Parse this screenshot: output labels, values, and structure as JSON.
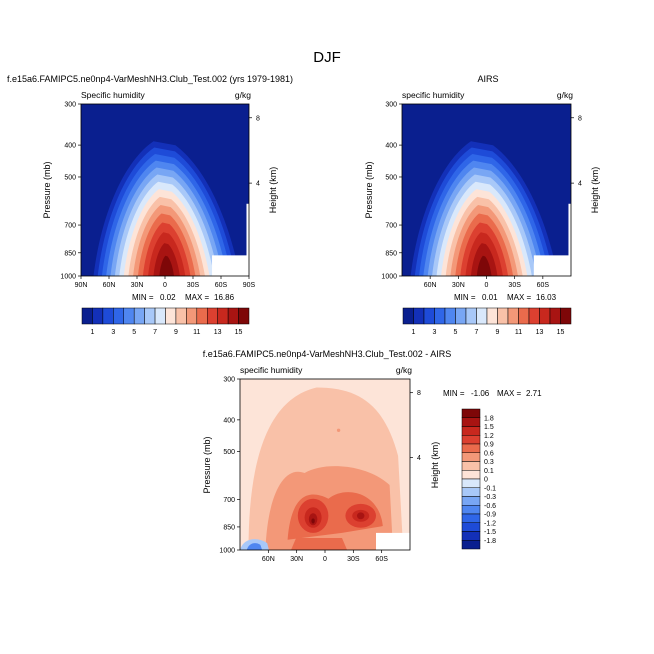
{
  "page_title": "DJF",
  "chart_data": [
    {
      "type": "heatmap",
      "title": "f.e15a6.FAMIPC5.ne0np4-VarMeshNH3.Club_Test.002 (yrs 1979-1981)",
      "left_label": "Specific humidity",
      "right_label": "g/kg",
      "xlabel": "",
      "ylabel": "Pressure (mb)",
      "y2label": "Height (km)",
      "x_ticks": [
        "90N",
        "60N",
        "30N",
        "0",
        "30S",
        "60S",
        "90S"
      ],
      "x_range": [
        90,
        -90
      ],
      "y_ticks": [
        300,
        400,
        500,
        700,
        850,
        1000
      ],
      "y_range": [
        300,
        1000
      ],
      "y_scale": "log",
      "height_ticks": [
        8,
        4
      ],
      "min": "0.02",
      "max": "16.86",
      "min_label": "MIN =",
      "max_label": "MAX =",
      "peak": [
        0,
        1000,
        16.86
      ]
    },
    {
      "type": "heatmap",
      "title": "AIRS",
      "left_label": "specific humidity",
      "right_label": "g/kg",
      "xlabel": "",
      "ylabel": "Pressure (mb)",
      "y2label": "Height (km)",
      "x_ticks": [
        "60N",
        "30N",
        "0",
        "30S",
        "60S"
      ],
      "x_range": [
        90,
        -90
      ],
      "y_ticks": [
        300,
        400,
        500,
        700,
        850,
        1000
      ],
      "y_range": [
        300,
        1000
      ],
      "y_scale": "log",
      "height_ticks": [
        8,
        4
      ],
      "min": "0.01",
      "max": "16.03",
      "min_label": "MIN =",
      "max_label": "MAX =",
      "peak": [
        0,
        1000,
        16.03
      ]
    },
    {
      "type": "heatmap",
      "title": "f.e15a6.FAMIPC5.ne0np4-VarMeshNH3.Club_Test.002 - AIRS",
      "left_label": "specific humidity",
      "right_label": "g/kg",
      "xlabel": "",
      "ylabel": "Pressure (mb)",
      "y2label": "Height (km)",
      "x_ticks": [
        "60N",
        "30N",
        "0",
        "30S",
        "60S"
      ],
      "x_range": [
        90,
        -90
      ],
      "y_ticks": [
        300,
        400,
        500,
        700,
        850,
        1000
      ],
      "y_range": [
        300,
        1000
      ],
      "y_scale": "log",
      "height_ticks": [
        8,
        4
      ],
      "min": "-1.06",
      "max": "2.71",
      "min_label": "MIN =",
      "max_label": "MAX ="
    }
  ],
  "colorbar_top": {
    "labels": [
      "1",
      "3",
      "5",
      "7",
      "9",
      "11",
      "13",
      "15"
    ],
    "colors": [
      "#0a1f8f",
      "#1330b8",
      "#1e4bd8",
      "#2f66e8",
      "#4f86f0",
      "#78a6f4",
      "#a8c8f8",
      "#d9e8fb",
      "#fde4d8",
      "#f9c1a8",
      "#f39878",
      "#ea6b4c",
      "#dc4030",
      "#c8281e",
      "#a81412",
      "#7e0708"
    ]
  },
  "colorbar_diff": {
    "labels": [
      "1.8",
      "1.5",
      "1.2",
      "0.9",
      "0.6",
      "0.3",
      "0.1",
      "0",
      "-0.1",
      "-0.3",
      "-0.6",
      "-0.9",
      "-1.2",
      "-1.5",
      "-1.8"
    ],
    "colors": [
      "#7e0708",
      "#a81412",
      "#c8281e",
      "#dc4030",
      "#ea6b4c",
      "#f39878",
      "#f9c1a8",
      "#fde4d8",
      "#d9e8fb",
      "#a8c8f8",
      "#78a6f4",
      "#4f86f0",
      "#2f66e8",
      "#1e4bd8",
      "#1330b8",
      "#0a1f8f"
    ]
  },
  "palette": {
    "deep_blue": "#1c2f96",
    "pale_orange": "#fbe0d0"
  }
}
